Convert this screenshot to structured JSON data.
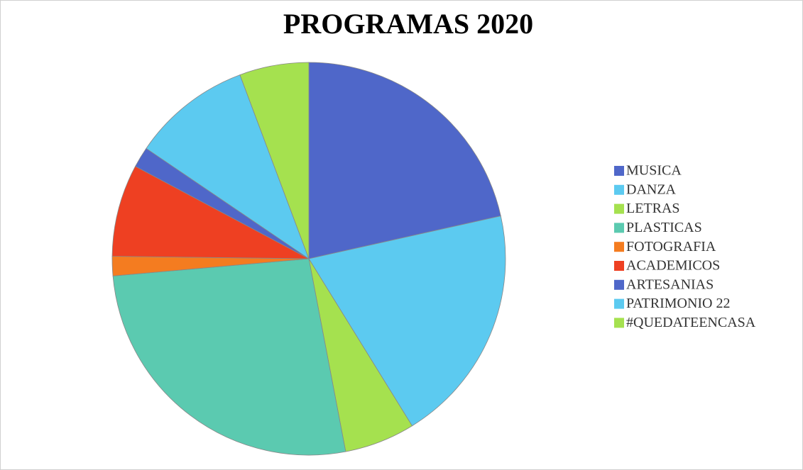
{
  "chart_data": {
    "type": "pie",
    "title": "PROGRAMAS 2020",
    "categories": [
      "MUSICA",
      "DANZA",
      "LETRAS",
      "PLASTICAS",
      "FOTOGRAFIA",
      "ACADEMICOS",
      "ARTESANIAS",
      "PATRIMONIO 22",
      "#QUEDATEENCASA"
    ],
    "values": [
      21.5,
      19.7,
      5.8,
      26.6,
      1.6,
      7.6,
      1.7,
      9.8,
      5.7
    ],
    "colors": [
      "#4f67c9",
      "#5ccaf0",
      "#a5e14f",
      "#5bcab0",
      "#f47c20",
      "#ee4022",
      "#4f67c9",
      "#5ccaf0",
      "#a5e14f"
    ],
    "legend": "right"
  }
}
